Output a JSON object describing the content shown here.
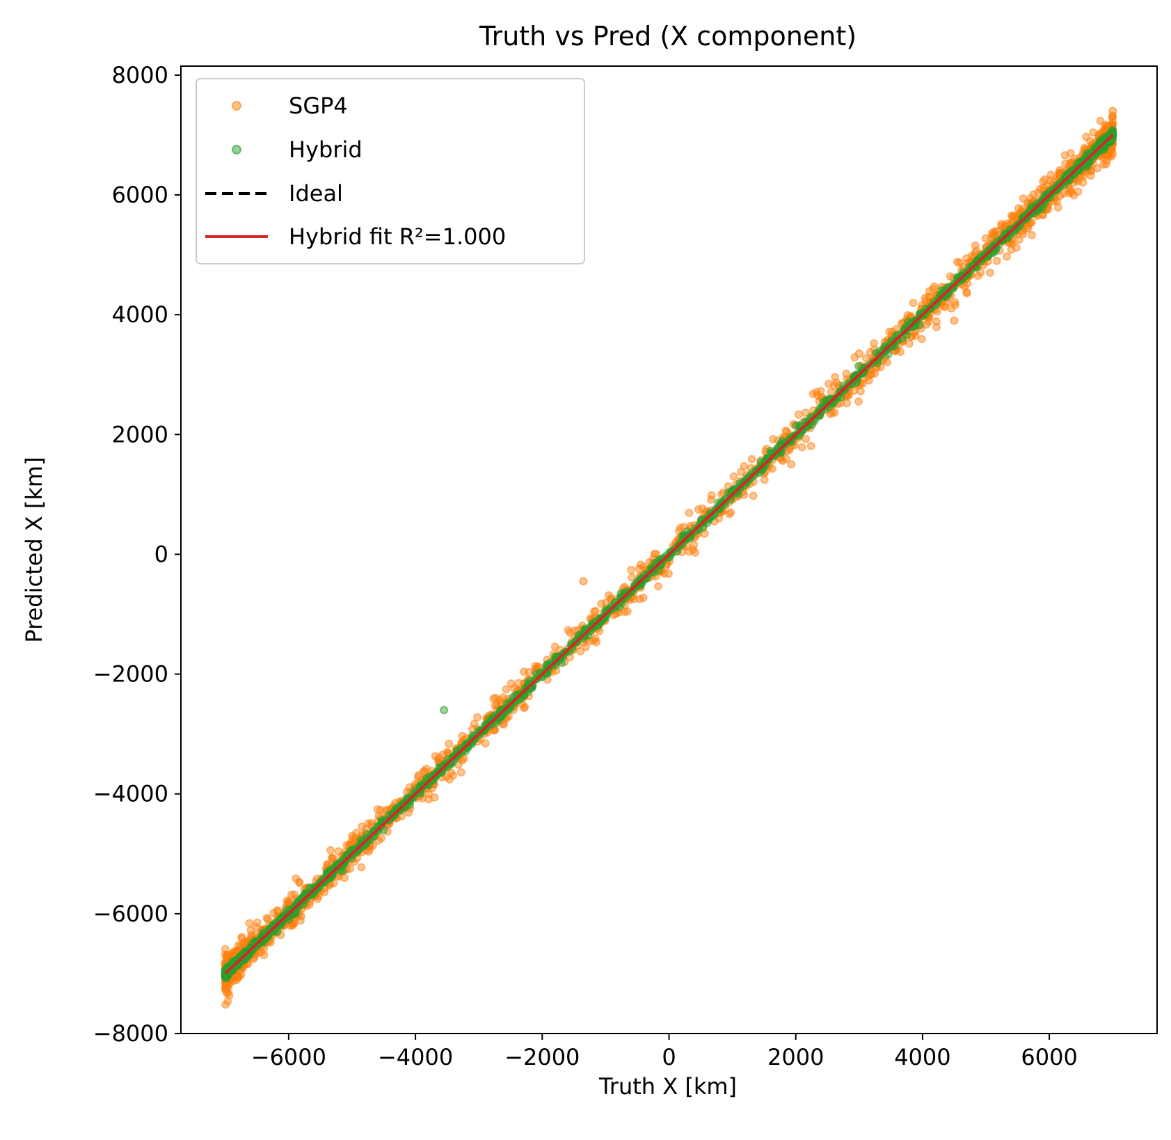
{
  "chart_data": {
    "type": "scatter",
    "title": "Truth vs Pred (X component)",
    "xlabel": "Truth X [km]",
    "ylabel": "Predicted X [km]",
    "xlim": [
      -7700,
      7700
    ],
    "ylim": [
      -8000,
      8150
    ],
    "xticks": [
      -6000,
      -4000,
      -2000,
      0,
      2000,
      4000,
      6000
    ],
    "yticks": [
      -8000,
      -6000,
      -4000,
      -2000,
      0,
      2000,
      4000,
      6000,
      8000
    ],
    "xtick_labels": [
      "−6000",
      "−4000",
      "−2000",
      "0",
      "2000",
      "4000",
      "6000"
    ],
    "ytick_labels": [
      "−8000",
      "−6000",
      "−4000",
      "−2000",
      "0",
      "2000",
      "4000",
      "6000",
      "8000"
    ],
    "grid": false,
    "legend_position": "top-left",
    "series": [
      {
        "name": "SGP4",
        "kind": "scatter",
        "color": "#ff7f0e",
        "x_range": [
          -7000,
          7000
        ],
        "noise_std_km": 150,
        "outliers": [
          {
            "x": -1350,
            "y": -450
          },
          {
            "x": 4500,
            "y": 3900
          },
          {
            "x": 3000,
            "y": 3350
          },
          {
            "x": 7000,
            "y": 7400
          }
        ]
      },
      {
        "name": "Hybrid",
        "kind": "scatter",
        "color": "#2ca02c",
        "x_range": [
          -7000,
          7000
        ],
        "noise_std_km": 40,
        "outliers": [
          {
            "x": -3550,
            "y": -2600
          }
        ]
      },
      {
        "name": "Ideal",
        "kind": "line",
        "style": "dashed",
        "color": "#000000",
        "x": [
          -7000,
          7000
        ],
        "y": [
          -7000,
          7000
        ]
      },
      {
        "name": "Hybrid fit R²=1.000",
        "kind": "line",
        "style": "solid",
        "color": "#d62728",
        "x": [
          -7000,
          7000
        ],
        "y": [
          -7000,
          7000
        ]
      }
    ]
  }
}
